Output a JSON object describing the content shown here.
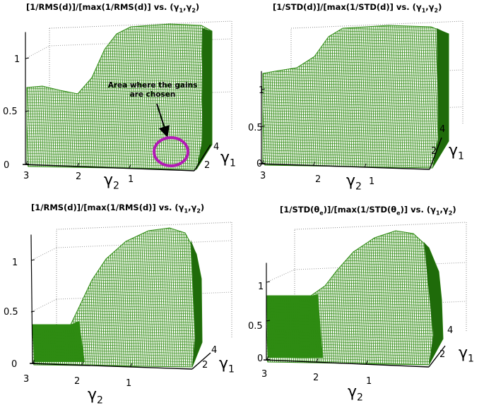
{
  "chart_data": [
    {
      "type": "surface3d",
      "title_main": "[1/RMS(d)]/[max(1/RMS(d)] vs. (",
      "title_tail": ")",
      "gamma_letter": "γ",
      "sub1": "1",
      "sub2": "2",
      "ytick_labels": [
        "0",
        "0.5",
        "1"
      ],
      "g2_tick_labels": [
        "3",
        "2",
        "1"
      ],
      "g1_tick_labels": [
        "2",
        "4"
      ],
      "xlabel_main": "γ",
      "xlabel_sub": "2",
      "g1label_main": "γ",
      "g1label_sub": "1",
      "surface_color": "#2e8b12",
      "annotation": "Area where the gains are chosen",
      "annotation_circle_color": "#b21bb4"
    },
    {
      "type": "surface3d",
      "title_main": "[1/STD(d)]/[max(1/STD(d)] vs. (",
      "title_tail": ")",
      "gamma_letter": "γ",
      "sub1": "1",
      "sub2": "2",
      "ytick_labels": [
        "0",
        "0.5",
        "1"
      ],
      "g2_tick_labels": [
        "3",
        "2",
        "1"
      ],
      "g1_tick_labels": [
        "2",
        "4"
      ],
      "xlabel_main": "γ",
      "xlabel_sub": "2",
      "g1label_main": "γ",
      "g1label_sub": "1",
      "surface_color": "#2e8b12"
    },
    {
      "type": "surface3d",
      "title_main": "[1/RMS(d)]/[max(1/RMS(d)] vs. (",
      "title_tail": ")",
      "gamma_letter": "γ",
      "sub1": "1",
      "sub2": "2",
      "ytick_labels": [
        "0",
        "0.5",
        "1"
      ],
      "g2_tick_labels": [
        "3",
        "2",
        "1"
      ],
      "g1_tick_labels": [
        "2",
        "4"
      ],
      "xlabel_main": "γ",
      "xlabel_sub": "2",
      "g1label_main": "γ",
      "g1label_sub": "1",
      "surface_color": "#2e8b12"
    },
    {
      "type": "surface3d",
      "title_main": "[1/STD(θ",
      "title_mid_sub": "e",
      "title_mid": ")]/[max(1/STD(θ",
      "title_mid2_sub": "e",
      "title_mid2": ")] vs. (",
      "title_tail": ")",
      "gamma_letter": "γ",
      "sub1": "1",
      "sub2": "2",
      "ytick_labels": [
        "0",
        "0.5",
        "1"
      ],
      "g2_tick_labels": [
        "3",
        "2",
        "1"
      ],
      "g1_tick_labels": [
        "2",
        "4"
      ],
      "xlabel_main": "γ",
      "xlabel_sub": "2",
      "g1label_main": "γ",
      "g1label_sub": "1",
      "surface_color": "#2e8b12"
    }
  ]
}
